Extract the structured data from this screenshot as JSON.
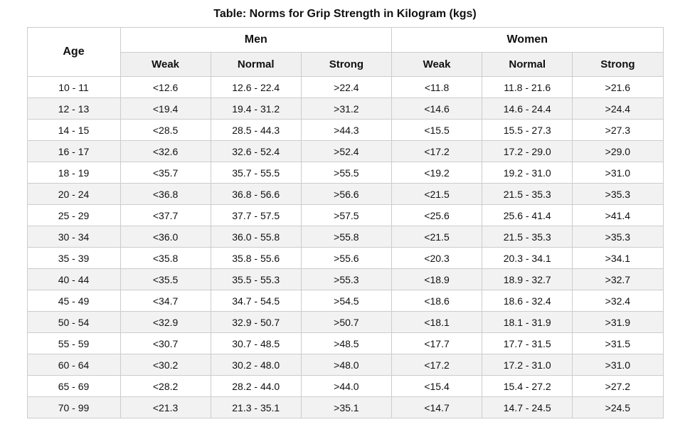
{
  "chart_data": {
    "type": "table",
    "title": "Table: Norms for Grip Strength in Kilogram (kgs)",
    "age_header": "Age",
    "group_headers": [
      "Men",
      "Women"
    ],
    "sub_headers": [
      "Weak",
      "Normal",
      "Strong"
    ],
    "columns": [
      "Age",
      "Men Weak",
      "Men Normal",
      "Men Strong",
      "Women Weak",
      "Women Normal",
      "Women Strong"
    ],
    "rows": [
      {
        "age": "10 - 11",
        "values": [
          "<12.6",
          "12.6 - 22.4",
          ">22.4",
          "<11.8",
          "11.8 - 21.6",
          ">21.6"
        ]
      },
      {
        "age": "12 - 13",
        "values": [
          "<19.4",
          "19.4 - 31.2",
          ">31.2",
          "<14.6",
          "14.6 - 24.4",
          ">24.4"
        ]
      },
      {
        "age": "14 - 15",
        "values": [
          "<28.5",
          "28.5 - 44.3",
          ">44.3",
          "<15.5",
          "15.5 - 27.3",
          ">27.3"
        ]
      },
      {
        "age": "16 - 17",
        "values": [
          "<32.6",
          "32.6 - 52.4",
          ">52.4",
          "<17.2",
          "17.2 - 29.0",
          ">29.0"
        ]
      },
      {
        "age": "18 - 19",
        "values": [
          "<35.7",
          "35.7 - 55.5",
          ">55.5",
          "<19.2",
          "19.2 - 31.0",
          ">31.0"
        ]
      },
      {
        "age": "20 - 24",
        "values": [
          "<36.8",
          "36.8 - 56.6",
          ">56.6",
          "<21.5",
          "21.5 - 35.3",
          ">35.3"
        ]
      },
      {
        "age": "25 - 29",
        "values": [
          "<37.7",
          "37.7 - 57.5",
          ">57.5",
          "<25.6",
          "25.6 - 41.4",
          ">41.4"
        ]
      },
      {
        "age": "30 - 34",
        "values": [
          "<36.0",
          "36.0 - 55.8",
          ">55.8",
          "<21.5",
          "21.5 - 35.3",
          ">35.3"
        ]
      },
      {
        "age": "35 - 39",
        "values": [
          "<35.8",
          "35.8 - 55.6",
          ">55.6",
          "<20.3",
          "20.3 - 34.1",
          ">34.1"
        ]
      },
      {
        "age": "40 - 44",
        "values": [
          "<35.5",
          "35.5 - 55.3",
          ">55.3",
          "<18.9",
          "18.9 - 32.7",
          ">32.7"
        ]
      },
      {
        "age": "45 - 49",
        "values": [
          "<34.7",
          "34.7 - 54.5",
          ">54.5",
          "<18.6",
          "18.6 - 32.4",
          ">32.4"
        ]
      },
      {
        "age": "50 - 54",
        "values": [
          "<32.9",
          "32.9 - 50.7",
          ">50.7",
          "<18.1",
          "18.1 - 31.9",
          ">31.9"
        ]
      },
      {
        "age": "55 - 59",
        "values": [
          "<30.7",
          "30.7 - 48.5",
          ">48.5",
          "<17.7",
          "17.7 - 31.5",
          ">31.5"
        ]
      },
      {
        "age": "60 - 64",
        "values": [
          "<30.2",
          "30.2 - 48.0",
          ">48.0",
          "<17.2",
          "17.2 - 31.0",
          ">31.0"
        ]
      },
      {
        "age": "65 - 69",
        "values": [
          "<28.2",
          "28.2 - 44.0",
          ">44.0",
          "<15.4",
          "15.4 - 27.2",
          ">27.2"
        ]
      },
      {
        "age": "70 - 99",
        "values": [
          "<21.3",
          "21.3 - 35.1",
          ">35.1",
          "<14.7",
          "14.7 - 24.5",
          ">24.5"
        ]
      }
    ],
    "layout": {
      "grid": true,
      "striped_rows": true
    }
  },
  "colors": {
    "background": "#ffffff",
    "border": "#cccccc",
    "subheader_bg": "#f0f0f0",
    "stripe_bg": "#f2f2f2",
    "text": "#111111"
  }
}
